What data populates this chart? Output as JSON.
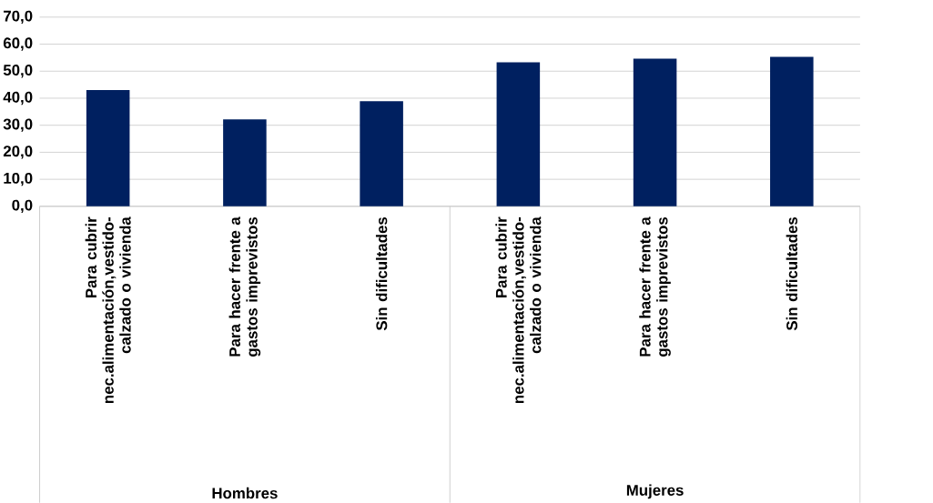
{
  "chart_data": {
    "type": "bar",
    "categories": [
      "Para cubrir nec.alimentación,vestido-calzado o vivienda",
      "Para hacer frente a gastos imprevistos",
      "Sin dificultades",
      "Para cubrir nec.alimentación,vestido-calzado o vivienda",
      "Para hacer frente a gastos imprevistos",
      "Sin dificultades"
    ],
    "values": [
      43.0,
      32.2,
      38.9,
      53.3,
      54.6,
      55.3
    ],
    "color": "#002060",
    "ylim": [
      0,
      70
    ],
    "yticks": [
      {
        "value": 0,
        "label": "0,0"
      },
      {
        "value": 10,
        "label": "10,0"
      },
      {
        "value": 20,
        "label": "20,0"
      },
      {
        "value": 30,
        "label": "30,0"
      },
      {
        "value": 40,
        "label": "40,0"
      },
      {
        "value": 50,
        "label": "50,0"
      },
      {
        "value": 60,
        "label": "60,0"
      },
      {
        "value": 70,
        "label": "70,0"
      }
    ],
    "grid": "y",
    "annotations": [
      "Hombres",
      "Mujeres"
    ]
  }
}
